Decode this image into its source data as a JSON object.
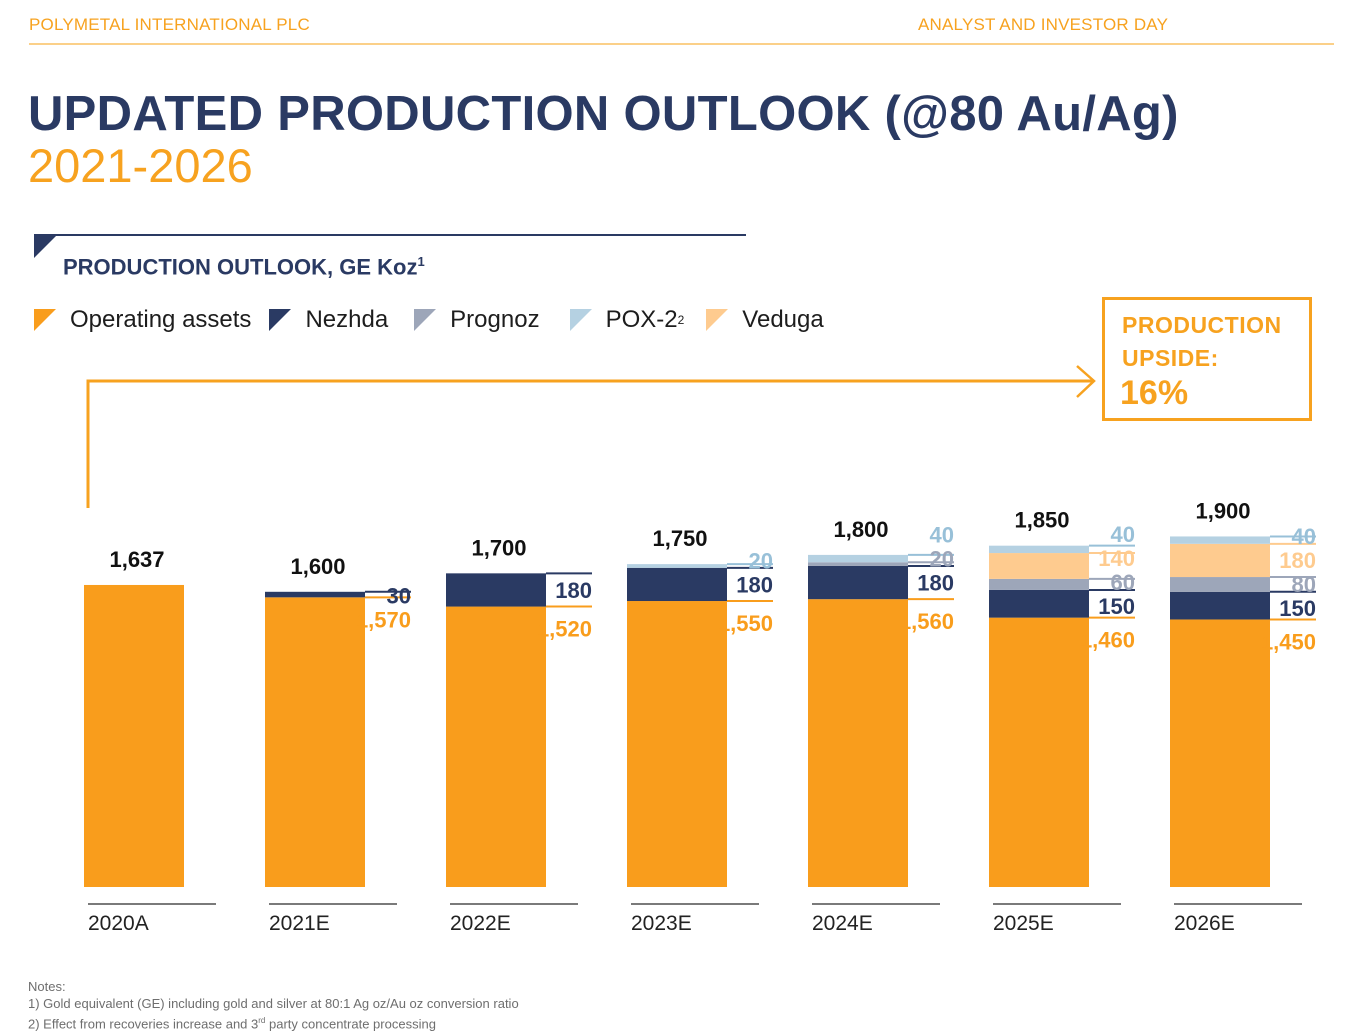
{
  "header": {
    "company": "POLYMETAL INTERNATIONAL PLC",
    "event": "ANALYST AND INVESTOR DAY"
  },
  "title": "UPDATED PRODUCTION OUTLOOK (@80 Au/Ag)",
  "subtitle": "2021-2026",
  "section": {
    "title": "PRODUCTION OUTLOOK, GE Koz",
    "footnote_mark": "1"
  },
  "legend": [
    {
      "label": "Operating assets",
      "sup": "",
      "color": "#f99d1c"
    },
    {
      "label": "Nezhda",
      "sup": "",
      "color": "#2a3a63"
    },
    {
      "label": "Prognoz",
      "sup": "",
      "color": "#9da6b9"
    },
    {
      "label": "POX-2",
      "sup": "2",
      "color": "#b5d1e2"
    },
    {
      "label": "Veduga",
      "sup": "",
      "color": "#fecb8f"
    }
  ],
  "upside": {
    "line1": "PRODUCTION",
    "line2": "UPSIDE:",
    "value": "16%",
    "color": "#f7a21f"
  },
  "chart_data": {
    "type": "bar",
    "stacked": true,
    "title": "PRODUCTION OUTLOOK, GE Koz",
    "xlabel": "",
    "ylabel": "GE Koz",
    "ylim": [
      0,
      1900
    ],
    "grid": false,
    "legend_position": "top-left",
    "categories": [
      "2020A",
      "2021E",
      "2022E",
      "2023E",
      "2024E",
      "2025E",
      "2026E"
    ],
    "totals": [
      "1,637",
      "1,600",
      "1,700",
      "1,750",
      "1,800",
      "1,850",
      "1,900"
    ],
    "series": [
      {
        "name": "Operating assets",
        "color": "#f99d1c",
        "label_color": "#f99d1c",
        "values": [
          1637,
          1570,
          1520,
          1550,
          1560,
          1460,
          1450
        ],
        "labels": [
          "",
          "1,570",
          "1,520",
          "1,550",
          "1,560",
          "1,460",
          "1,450"
        ]
      },
      {
        "name": "Nezhda",
        "color": "#2a3a63",
        "label_color": "#2a3a63",
        "values": [
          0,
          30,
          180,
          180,
          180,
          150,
          150
        ],
        "labels": [
          "",
          "30",
          "180",
          "180",
          "180",
          "150",
          "150"
        ]
      },
      {
        "name": "Prognoz",
        "color": "#9da6b9",
        "label_color": "#9da6b9",
        "values": [
          0,
          0,
          0,
          0,
          20,
          60,
          80
        ],
        "labels": [
          "",
          "",
          "",
          "",
          "20",
          "60",
          "80"
        ]
      },
      {
        "name": "Veduga",
        "color": "#fecb8f",
        "label_color": "#fecb8f",
        "values": [
          0,
          0,
          0,
          0,
          0,
          140,
          180
        ],
        "labels": [
          "",
          "",
          "",
          "",
          "",
          "140",
          "180"
        ]
      },
      {
        "name": "POX-2",
        "color": "#b5d1e2",
        "label_color": "#98c0d8",
        "values": [
          0,
          0,
          0,
          20,
          40,
          40,
          40
        ],
        "labels": [
          "",
          "",
          "",
          "20",
          "40",
          "40",
          "40"
        ]
      }
    ],
    "annotation": {
      "text": "PRODUCTION UPSIDE: 16%",
      "arrow": "from 2020A to upside box"
    }
  },
  "notes": {
    "heading": "Notes:",
    "n1": "1) Gold equivalent (GE) including gold and silver at 80:1 Ag oz/Au oz conversion ratio",
    "n2_pre": "2) Effect from recoveries increase and 3",
    "n2_sup": "rd",
    "n2_post": " party concentrate processing"
  }
}
